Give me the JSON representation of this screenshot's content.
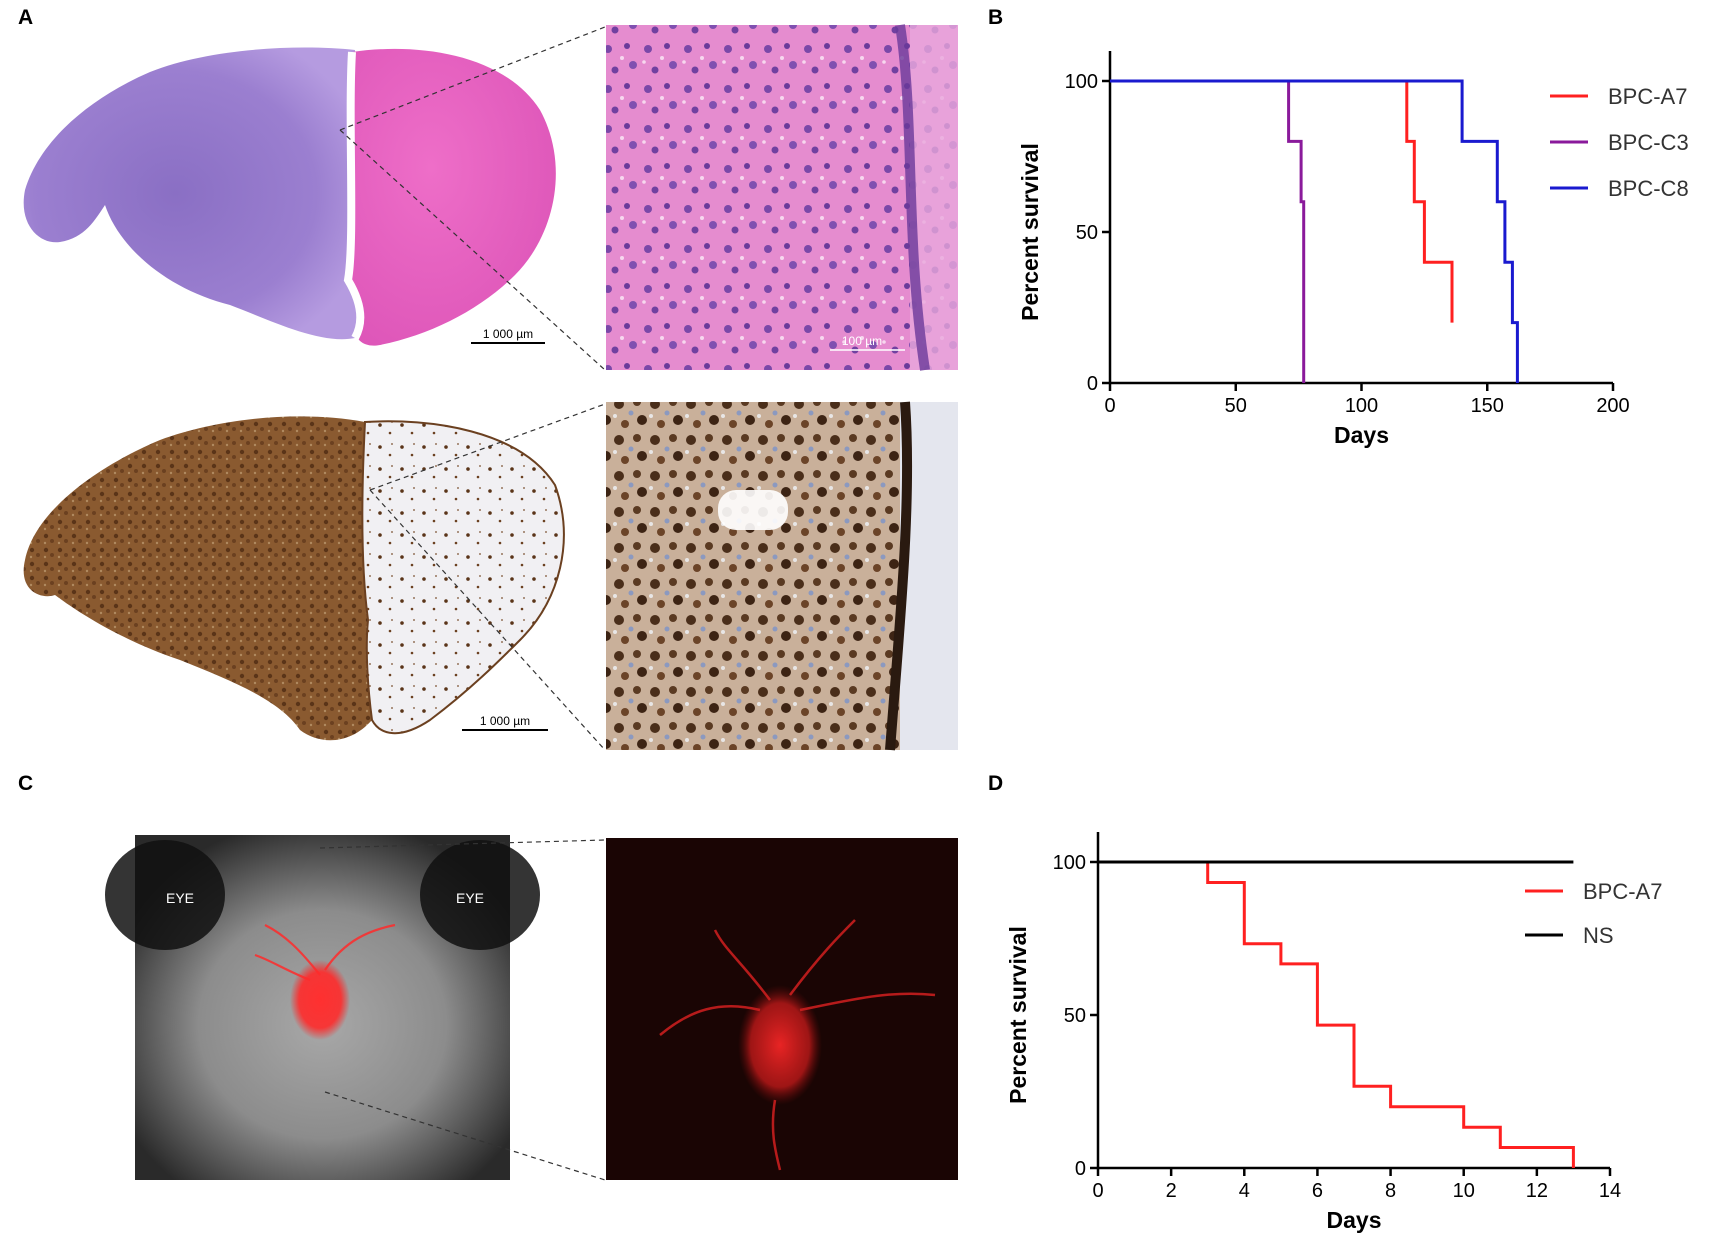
{
  "panels": {
    "a": {
      "letter": "A",
      "scale_top": "1 000 µm",
      "scale_zoom_top": "100 µm",
      "scale_bottom": "1 000 µm"
    },
    "b": {
      "letter": "B"
    },
    "c": {
      "letter": "C",
      "eye_left": "EYE",
      "eye_right": "EYE"
    },
    "d": {
      "letter": "D"
    }
  },
  "colors": {
    "red": "#ff2020",
    "purple": "#8a1a9b",
    "blue": "#1a1acf",
    "black": "#000000"
  },
  "chart_data": [
    {
      "type": "line",
      "subtype": "kaplan-meier",
      "xlabel": "Days",
      "ylabel": "Percent survival",
      "xlim": [
        0,
        200
      ],
      "ylim": [
        0,
        100
      ],
      "xticks": [
        0,
        50,
        100,
        150,
        200
      ],
      "yticks": [
        0,
        50,
        100
      ],
      "legend_position": "right",
      "series": [
        {
          "name": "BPC-A7",
          "color": "#ff2020",
          "steps": [
            [
              0,
              100
            ],
            [
              118,
              100
            ],
            [
              118,
              80
            ],
            [
              121,
              80
            ],
            [
              121,
              60
            ],
            [
              125,
              60
            ],
            [
              125,
              40
            ],
            [
              136,
              40
            ],
            [
              136,
              20
            ]
          ]
        },
        {
          "name": "BPC-C3",
          "color": "#8a1a9b",
          "steps": [
            [
              0,
              100
            ],
            [
              71,
              100
            ],
            [
              71,
              80
            ],
            [
              76,
              80
            ],
            [
              76,
              60
            ],
            [
              77,
              60
            ],
            [
              77,
              0
            ]
          ]
        },
        {
          "name": "BPC-C8",
          "color": "#1a1acf",
          "steps": [
            [
              0,
              100
            ],
            [
              140,
              100
            ],
            [
              140,
              80
            ],
            [
              154,
              80
            ],
            [
              154,
              60
            ],
            [
              157,
              60
            ],
            [
              157,
              40
            ],
            [
              160,
              40
            ],
            [
              160,
              20
            ],
            [
              162,
              20
            ],
            [
              162,
              0
            ]
          ]
        }
      ]
    },
    {
      "type": "line",
      "subtype": "kaplan-meier",
      "xlabel": "Days",
      "ylabel": "Percent survival",
      "xlim": [
        0,
        14
      ],
      "ylim": [
        0,
        100
      ],
      "xticks": [
        0,
        2,
        4,
        6,
        8,
        10,
        12,
        14
      ],
      "yticks": [
        0,
        50,
        100
      ],
      "legend_position": "right",
      "series": [
        {
          "name": "BPC-A7",
          "color": "#ff2020",
          "steps": [
            [
              0,
              100
            ],
            [
              3,
              100
            ],
            [
              3,
              93.3
            ],
            [
              4,
              93.3
            ],
            [
              4,
              73.3
            ],
            [
              5,
              73.3
            ],
            [
              5,
              66.7
            ],
            [
              6,
              66.7
            ],
            [
              6,
              46.7
            ],
            [
              7,
              46.7
            ],
            [
              7,
              26.7
            ],
            [
              8,
              26.7
            ],
            [
              8,
              20
            ],
            [
              10,
              20
            ],
            [
              10,
              13.3
            ],
            [
              11,
              13.3
            ],
            [
              11,
              6.7
            ],
            [
              13,
              6.7
            ],
            [
              13,
              0
            ]
          ]
        },
        {
          "name": "NS",
          "color": "#000000",
          "steps": [
            [
              0,
              100
            ],
            [
              13,
              100
            ]
          ]
        }
      ]
    }
  ]
}
